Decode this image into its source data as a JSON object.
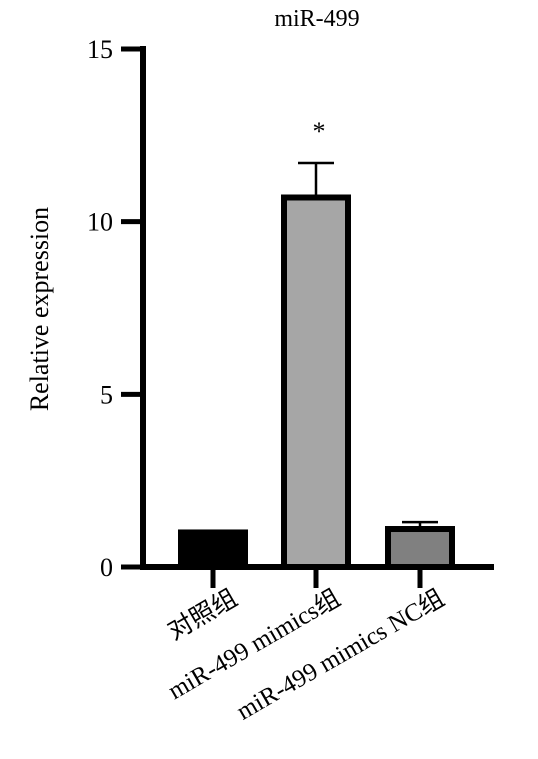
{
  "chart_data": {
    "type": "bar",
    "title": "miR-499",
    "xlabel": "",
    "ylabel": "Relative expression",
    "ylim": [
      0,
      15
    ],
    "yticks": [
      0,
      5,
      10,
      15
    ],
    "grid": false,
    "legend": "none",
    "categories": [
      "对照组",
      "miR-499 mimics组",
      "miR-499 mimics NC组"
    ],
    "values": [
      1.0,
      10.7,
      1.1
    ],
    "errors": [
      0.03,
      1.0,
      0.2
    ],
    "significance": [
      "",
      "*",
      ""
    ],
    "colors": [
      "#000000",
      "#a6a6a6",
      "#808080"
    ]
  }
}
